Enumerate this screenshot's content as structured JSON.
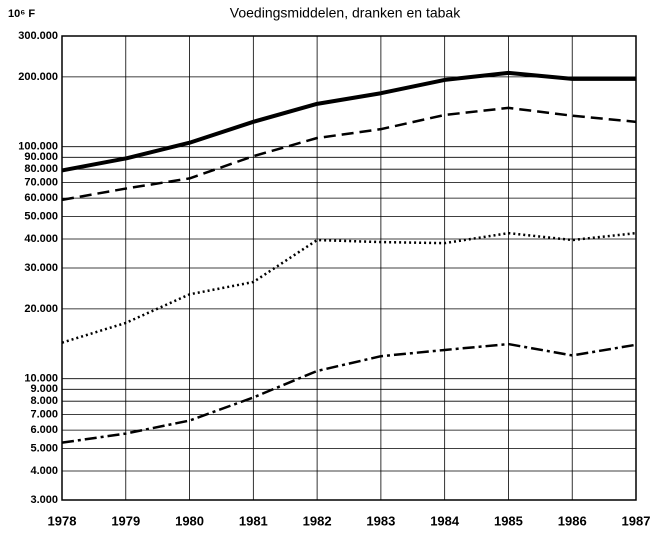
{
  "chart_data": {
    "type": "line",
    "title": "Voedingsmiddelen, dranken en tabak",
    "y_label": "10⁶ F",
    "x": [
      1978,
      1979,
      1980,
      1981,
      1982,
      1983,
      1984,
      1985,
      1986,
      1987
    ],
    "xlim": [
      1978,
      1987
    ],
    "xticks": [
      1978,
      1979,
      1980,
      1981,
      1982,
      1983,
      1984,
      1985,
      1986,
      1987
    ],
    "ylim": [
      3000,
      300000
    ],
    "log_y": true,
    "grid": true,
    "yticks": [
      {
        "value": 3000,
        "label": "3.000"
      },
      {
        "value": 4000,
        "label": "4.000"
      },
      {
        "value": 5000,
        "label": "5.000"
      },
      {
        "value": 6000,
        "label": "6.000"
      },
      {
        "value": 7000,
        "label": "7.000"
      },
      {
        "value": 8000,
        "label": "8.000"
      },
      {
        "value": 9000,
        "label": "9.000"
      },
      {
        "value": 10000,
        "label": "10.000"
      },
      {
        "value": 20000,
        "label": "20.000"
      },
      {
        "value": 30000,
        "label": "30.000"
      },
      {
        "value": 40000,
        "label": "40.000"
      },
      {
        "value": 50000,
        "label": "50.000"
      },
      {
        "value": 60000,
        "label": "60.000"
      },
      {
        "value": 70000,
        "label": "70.000"
      },
      {
        "value": 80000,
        "label": "80.000"
      },
      {
        "value": 90000,
        "label": "90.000"
      },
      {
        "value": 100000,
        "label": "100.000"
      },
      {
        "value": 200000,
        "label": "200.000"
      },
      {
        "value": 300000,
        "label": "300.000"
      }
    ],
    "series": [
      {
        "color": "#000000",
        "linestyle": "solid",
        "values": [
          79000,
          89000,
          104000,
          128000,
          153000,
          170000,
          194000,
          208000,
          196000,
          196000
        ]
      },
      {
        "color": "#000000",
        "linestyle": "dashed",
        "values": [
          59000,
          66000,
          73000,
          91000,
          109000,
          119000,
          137000,
          147000,
          136000,
          128000
        ]
      },
      {
        "color": "#000000",
        "linestyle": "dotted",
        "values": [
          14300,
          17400,
          23100,
          26100,
          39600,
          38800,
          38400,
          42400,
          39600,
          42400
        ]
      },
      {
        "color": "#000000",
        "linestyle": "dashdot",
        "values": [
          5300,
          5800,
          6600,
          8300,
          10800,
          12500,
          13300,
          14100,
          12600,
          14000
        ]
      }
    ]
  }
}
